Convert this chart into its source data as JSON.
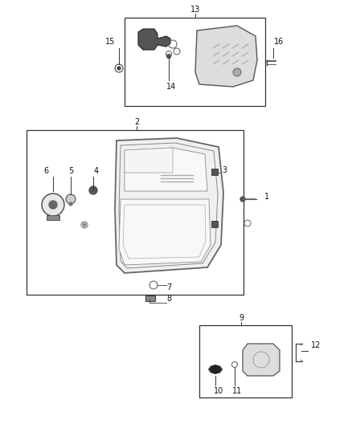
{
  "bg_color": "#ffffff",
  "line_color": "#333333",
  "label_color": "#111111",
  "fig_width": 4.38,
  "fig_height": 5.33,
  "dpi": 100
}
